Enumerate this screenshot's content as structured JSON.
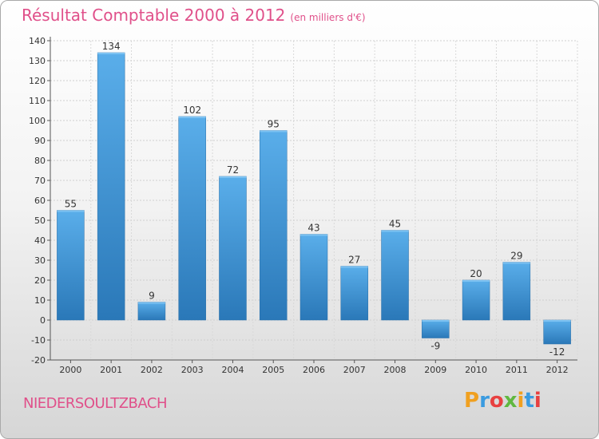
{
  "title": "Résultat Comptable 2000 à 2012",
  "subtitle": "(en milliers d'€)",
  "place": "NIEDERSOULTZBACH",
  "logo": {
    "letters": [
      "P",
      "r",
      "o",
      "x",
      "i",
      "t",
      "i"
    ],
    "colors": [
      "#f0a020",
      "#3a9be0",
      "#e84040",
      "#60b840",
      "#f0a020",
      "#3a9be0",
      "#e84040"
    ]
  },
  "chart_data": {
    "type": "bar",
    "title": "Résultat Comptable 2000 à 2012",
    "subtitle": "(en milliers d'€)",
    "categories": [
      "2000",
      "2001",
      "2002",
      "2003",
      "2004",
      "2005",
      "2006",
      "2007",
      "2008",
      "2009",
      "2010",
      "2011",
      "2012"
    ],
    "values": [
      55,
      134,
      9,
      102,
      72,
      95,
      43,
      27,
      45,
      -9,
      20,
      29,
      -12
    ],
    "value_labels": [
      "55",
      "134",
      "9",
      "102",
      "72",
      "95",
      "43",
      "27",
      "45",
      "-9",
      "20",
      "29",
      "-12"
    ],
    "ylim": [
      -20,
      140
    ],
    "yticks": [
      -20,
      -10,
      0,
      10,
      20,
      30,
      40,
      50,
      60,
      70,
      80,
      90,
      100,
      110,
      120,
      130,
      140
    ],
    "grid": true,
    "bar_color": "#3d8fd0"
  }
}
